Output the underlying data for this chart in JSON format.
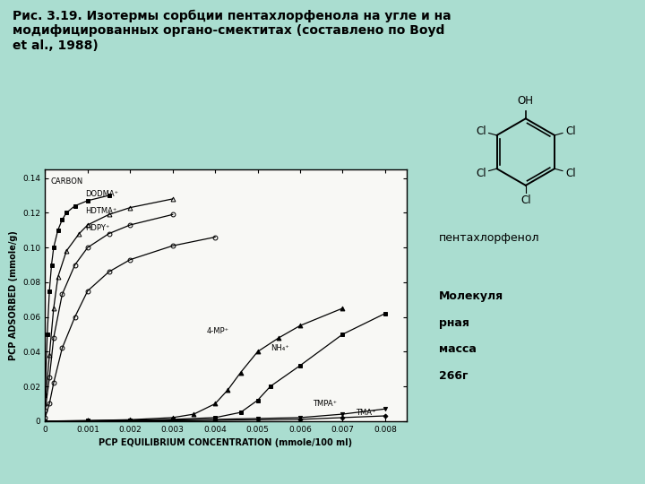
{
  "title": "Рис. 3.19. Изотермы сорбции пентахлорфенола на угле и на\nмодифицированных органо-смектитах (составлено по Boyd\net al., 1988)",
  "xlabel": "PCP EQUILIBRIUM CONCENTRATION (mmole/100 ml)",
  "ylabel": "PCP ADSORBED (mmole/g)",
  "bg_color": "#aaddd0",
  "plot_bg": "#f8f8f5",
  "xlim": [
    0,
    0.0085
  ],
  "ylim": [
    0,
    0.145
  ],
  "xticks": [
    0,
    0.001,
    0.002,
    0.003,
    0.004,
    0.005,
    0.006,
    0.007,
    0.008
  ],
  "yticks": [
    0,
    0.02,
    0.04,
    0.06,
    0.08,
    0.1,
    0.12,
    0.14
  ],
  "penta_label": "пентахлорфенол",
  "mol_weight_line1": "Молекуля",
  "mol_weight_line2": "рная",
  "mol_weight_line3": "масса",
  "mol_weight_line4": "266г"
}
